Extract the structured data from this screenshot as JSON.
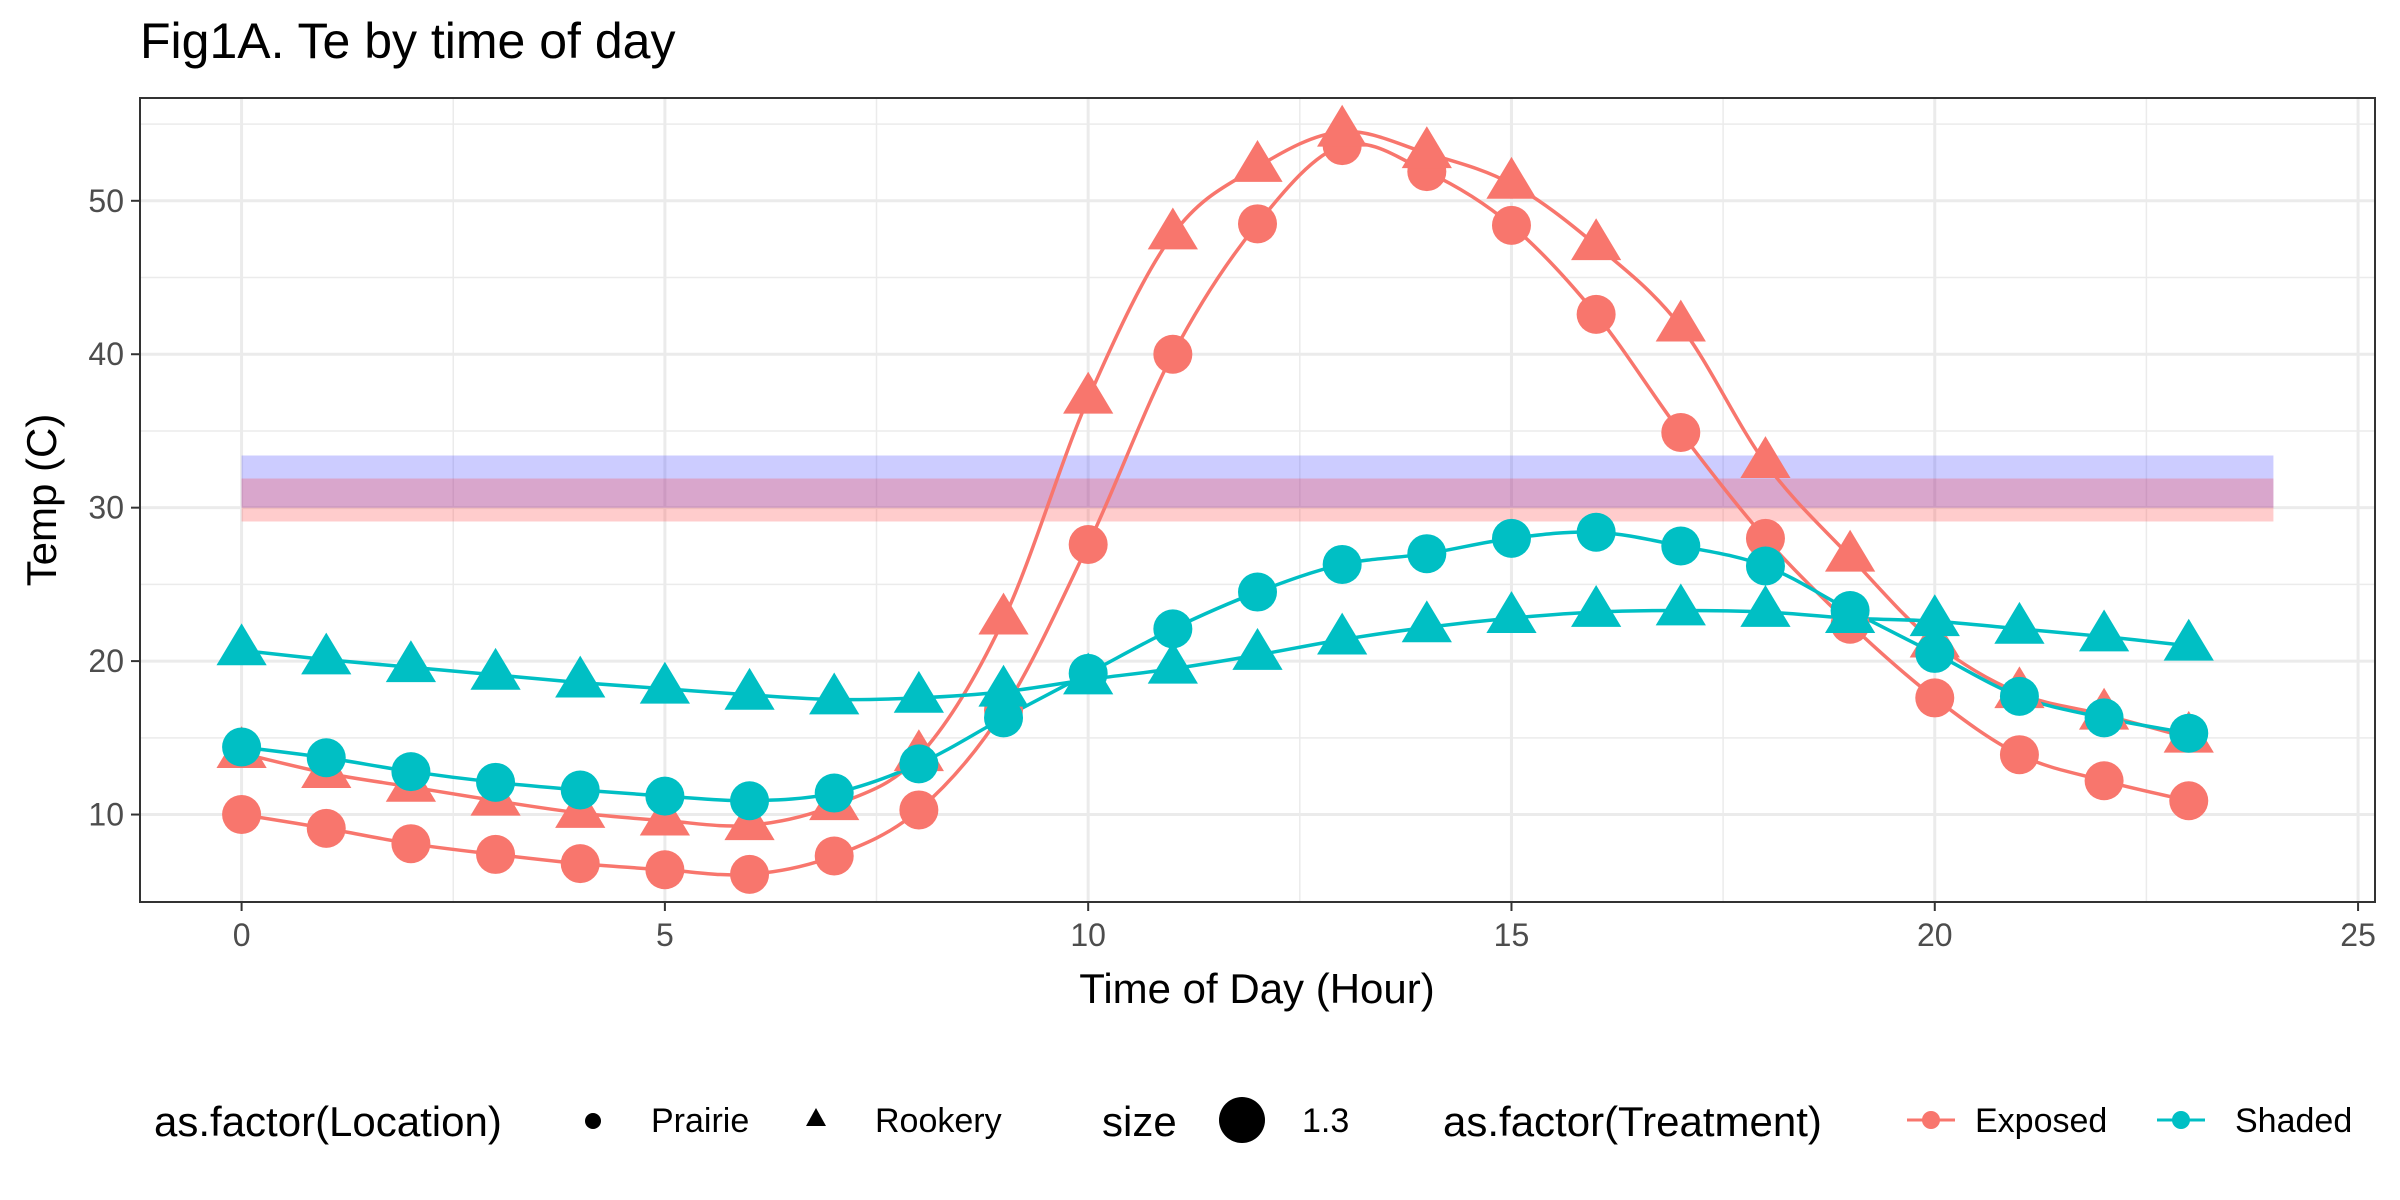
{
  "chart_data": {
    "type": "line",
    "title": "Fig1A. Te by time of day",
    "xlabel": "Time of Day (Hour)",
    "ylabel": "Temp (C)",
    "xlim": [
      -1.2,
      25.2
    ],
    "ylim": [
      4.3,
      56.7
    ],
    "xticks": [
      0,
      5,
      10,
      15,
      20,
      25
    ],
    "yticks": [
      10,
      20,
      30,
      40,
      50
    ],
    "xminor": [
      2.5,
      7.5,
      12.5,
      17.5,
      22.5
    ],
    "yminor": [
      15,
      25,
      35,
      45,
      55
    ],
    "grid": true,
    "legend_position": "bottom",
    "colors": {
      "Exposed": "#F8766D",
      "Shaded": "#00BFC4"
    },
    "bands": [
      {
        "x": [
          0,
          24
        ],
        "y": [
          30,
          33.4
        ],
        "color": "#3333ff",
        "opacity": 0.25
      },
      {
        "x": [
          0,
          24
        ],
        "y": [
          29.1,
          31.9
        ],
        "color": "#ff3333",
        "opacity": 0.25
      }
    ],
    "x": [
      0,
      1,
      2,
      3,
      4,
      5,
      6,
      7,
      8,
      9,
      10,
      11,
      12,
      13,
      14,
      15,
      16,
      17,
      18,
      19,
      20,
      21,
      22,
      23
    ],
    "series": [
      {
        "name": "Exposed",
        "location": "Prairie",
        "treatment": "Exposed",
        "values": [
          10.0,
          9.1,
          8.1,
          7.4,
          6.8,
          6.4,
          6.1,
          7.3,
          10.3,
          16.8,
          27.6,
          40.0,
          48.5,
          53.6,
          51.9,
          48.4,
          42.6,
          34.9,
          28.0,
          22.4,
          17.6,
          13.9,
          12.2,
          10.9
        ]
      },
      {
        "name": "Exposed",
        "location": "Rookery",
        "treatment": "Exposed",
        "values": [
          14.0,
          12.7,
          11.8,
          10.9,
          10.1,
          9.6,
          9.3,
          10.6,
          13.8,
          22.7,
          37.1,
          47.8,
          52.2,
          54.5,
          53.1,
          51.1,
          47.1,
          41.8,
          32.9,
          26.8,
          21.2,
          17.9,
          16.5,
          15.0
        ]
      },
      {
        "name": "Shaded",
        "location": "Prairie",
        "treatment": "Shaded",
        "values": [
          14.4,
          13.7,
          12.8,
          12.1,
          11.6,
          11.2,
          10.9,
          11.4,
          13.3,
          16.3,
          19.2,
          22.1,
          24.5,
          26.3,
          27.0,
          28.0,
          28.4,
          27.5,
          26.2,
          23.3,
          20.5,
          17.7,
          16.3,
          15.3
        ]
      },
      {
        "name": "Shaded",
        "location": "Rookery",
        "treatment": "Shaded",
        "values": [
          20.7,
          20.1,
          19.6,
          19.1,
          18.6,
          18.2,
          17.8,
          17.5,
          17.6,
          18.0,
          18.8,
          19.5,
          20.4,
          21.4,
          22.2,
          22.8,
          23.2,
          23.3,
          23.2,
          22.8,
          22.6,
          22.1,
          21.6,
          21.0
        ]
      }
    ],
    "legend": {
      "location": {
        "title": "as.factor(Location)",
        "items": [
          "Prairie",
          "Rookery"
        ]
      },
      "size": {
        "title": "size",
        "items": [
          "1.3"
        ]
      },
      "treatment": {
        "title": "as.factor(Treatment)",
        "items": [
          "Exposed",
          "Shaded"
        ]
      }
    }
  }
}
